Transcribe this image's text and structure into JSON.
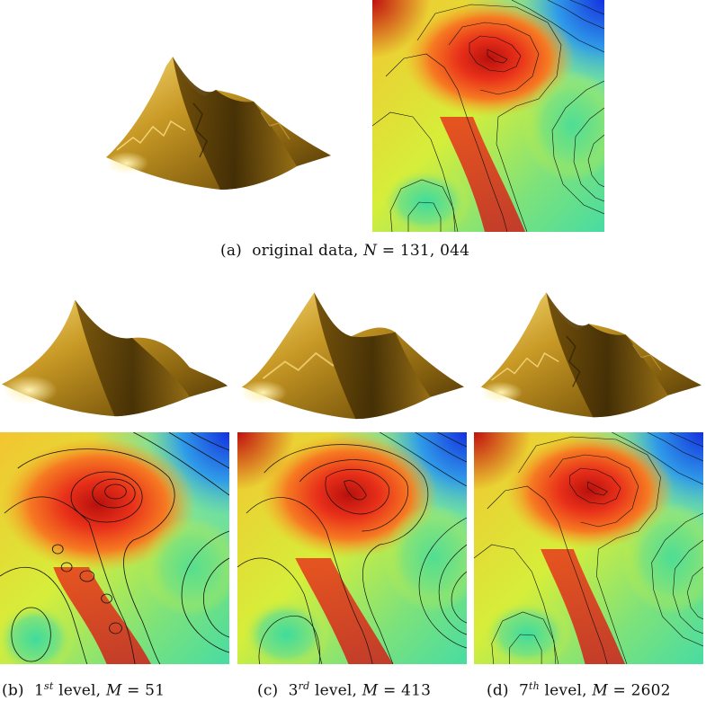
{
  "figure": {
    "panels": [
      {
        "id": "a",
        "tag": "(a)",
        "text": "original data,",
        "variable": "N",
        "equals": "=",
        "value": "131, 044",
        "level": null,
        "level_suffix": null
      },
      {
        "id": "b",
        "tag": "(b)",
        "text": "level,",
        "variable": "M",
        "equals": "=",
        "value": "51",
        "level": "1",
        "level_suffix": "st"
      },
      {
        "id": "c",
        "tag": "(c)",
        "text": "level,",
        "variable": "M",
        "equals": "=",
        "value": "413",
        "level": "3",
        "level_suffix": "rd"
      },
      {
        "id": "d",
        "tag": "(d)",
        "text": "level,",
        "variable": "M",
        "equals": "=",
        "value": "2602",
        "level": "7",
        "level_suffix": "th"
      }
    ],
    "colors": {
      "surface_dark": "#5a3e06",
      "surface_mid": "#b88a1c",
      "surface_light": "#f5d569",
      "map_high": "#c81a12",
      "map_mid": "#f6e43a",
      "map_low": "#3fdc9c",
      "map_corner": "#1a3fe6",
      "contour": "#111111"
    }
  }
}
